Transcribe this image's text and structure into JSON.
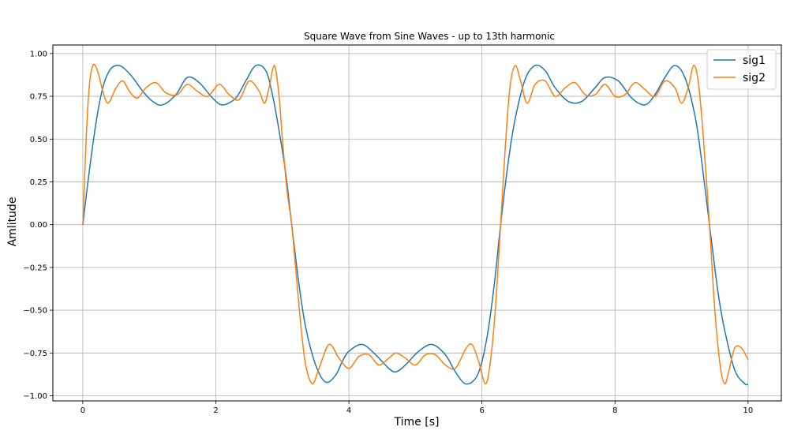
{
  "chart_data": {
    "type": "line",
    "title": "Square Wave from Sine Waves - up to 13th harmonic",
    "xlabel": "Time [s]",
    "ylabel": "Amlitude",
    "xlim": [
      -0.45,
      10.5
    ],
    "ylim": [
      -1.03,
      1.05
    ],
    "grid": true,
    "legend_position": "top-right",
    "x_ticks": [
      0,
      2,
      4,
      6,
      8,
      10
    ],
    "x_tick_labels": [
      "0",
      "2",
      "4",
      "6",
      "8",
      "10"
    ],
    "y_ticks": [
      1.0,
      0.75,
      0.5,
      0.25,
      0.0,
      -0.25,
      -0.5,
      -0.75,
      -1.0
    ],
    "y_tick_labels": [
      "1.00",
      "0.75",
      "0.50",
      "0.25",
      "0.00",
      "−0.25",
      "−0.50",
      "−0.75",
      "−1.00"
    ],
    "series": [
      {
        "name": "sig1",
        "color": "#1f77b4",
        "x": [
          0,
          0.1,
          0.2,
          0.3,
          0.4,
          0.5,
          0.6,
          0.75,
          0.9,
          1.05,
          1.2,
          1.4,
          1.57,
          1.75,
          1.95,
          2.1,
          2.3,
          2.45,
          2.6,
          2.75,
          2.85,
          2.95,
          3.05,
          3.14,
          3.25,
          3.35,
          3.5,
          3.65,
          3.8,
          3.9,
          4.0,
          4.2,
          4.4,
          4.6,
          4.71,
          4.85,
          5.05,
          5.25,
          5.45,
          5.6,
          5.75,
          5.9,
          6.0,
          6.1,
          6.2,
          6.28,
          6.4,
          6.5,
          6.65,
          6.8,
          6.95,
          7.1,
          7.3,
          7.5,
          7.7,
          7.85,
          8.05,
          8.25,
          8.45,
          8.6,
          8.75,
          8.9,
          9.05,
          9.2,
          9.3,
          9.42,
          9.55,
          9.65,
          9.8,
          9.95,
          10.0
        ],
        "y": [
          0,
          0.32,
          0.6,
          0.8,
          0.9,
          0.93,
          0.92,
          0.86,
          0.78,
          0.72,
          0.7,
          0.76,
          0.86,
          0.83,
          0.74,
          0.7,
          0.74,
          0.84,
          0.93,
          0.9,
          0.76,
          0.55,
          0.3,
          0.0,
          -0.35,
          -0.6,
          -0.82,
          -0.92,
          -0.88,
          -0.8,
          -0.74,
          -0.7,
          -0.76,
          -0.84,
          -0.86,
          -0.82,
          -0.74,
          -0.7,
          -0.76,
          -0.86,
          -0.93,
          -0.9,
          -0.8,
          -0.6,
          -0.3,
          0.0,
          0.38,
          0.62,
          0.85,
          0.93,
          0.9,
          0.8,
          0.72,
          0.72,
          0.8,
          0.86,
          0.84,
          0.74,
          0.7,
          0.76,
          0.86,
          0.93,
          0.86,
          0.64,
          0.38,
          0.0,
          -0.4,
          -0.62,
          -0.85,
          -0.93,
          -0.93
        ]
      },
      {
        "name": "sig2",
        "color": "#ff7f0e",
        "x": [
          0,
          0.05,
          0.1,
          0.15,
          0.2,
          0.25,
          0.3,
          0.38,
          0.5,
          0.6,
          0.7,
          0.82,
          0.95,
          1.1,
          1.25,
          1.42,
          1.57,
          1.72,
          1.88,
          2.05,
          2.2,
          2.35,
          2.5,
          2.65,
          2.73,
          2.8,
          2.88,
          2.95,
          3.0,
          3.07,
          3.14,
          3.21,
          3.28,
          3.35,
          3.45,
          3.55,
          3.7,
          3.85,
          4.0,
          4.15,
          4.3,
          4.45,
          4.6,
          4.71,
          4.85,
          5.0,
          5.15,
          5.3,
          5.45,
          5.6,
          5.75,
          5.85,
          5.95,
          6.05,
          6.12,
          6.2,
          6.28,
          6.35,
          6.42,
          6.5,
          6.58,
          6.68,
          6.8,
          6.95,
          7.1,
          7.25,
          7.4,
          7.55,
          7.7,
          7.85,
          8.0,
          8.15,
          8.3,
          8.45,
          8.6,
          8.75,
          8.9,
          9.0,
          9.1,
          9.18,
          9.25,
          9.32,
          9.42,
          9.5,
          9.58,
          9.65,
          9.72,
          9.8,
          9.9,
          10.0
        ],
        "y": [
          0,
          0.5,
          0.82,
          0.93,
          0.92,
          0.86,
          0.78,
          0.71,
          0.8,
          0.84,
          0.78,
          0.74,
          0.8,
          0.83,
          0.77,
          0.76,
          0.82,
          0.78,
          0.75,
          0.82,
          0.76,
          0.73,
          0.84,
          0.78,
          0.71,
          0.8,
          0.93,
          0.75,
          0.5,
          0.2,
          0.0,
          -0.3,
          -0.6,
          -0.82,
          -0.93,
          -0.84,
          -0.7,
          -0.78,
          -0.84,
          -0.77,
          -0.76,
          -0.82,
          -0.78,
          -0.75,
          -0.78,
          -0.82,
          -0.76,
          -0.76,
          -0.82,
          -0.84,
          -0.73,
          -0.7,
          -0.8,
          -0.93,
          -0.82,
          -0.5,
          0.0,
          0.45,
          0.8,
          0.93,
          0.84,
          0.71,
          0.82,
          0.84,
          0.75,
          0.8,
          0.83,
          0.76,
          0.76,
          0.82,
          0.75,
          0.76,
          0.83,
          0.79,
          0.75,
          0.84,
          0.8,
          0.71,
          0.8,
          0.93,
          0.84,
          0.55,
          0.0,
          -0.5,
          -0.82,
          -0.93,
          -0.84,
          -0.72,
          -0.72,
          -0.79
        ]
      }
    ]
  }
}
